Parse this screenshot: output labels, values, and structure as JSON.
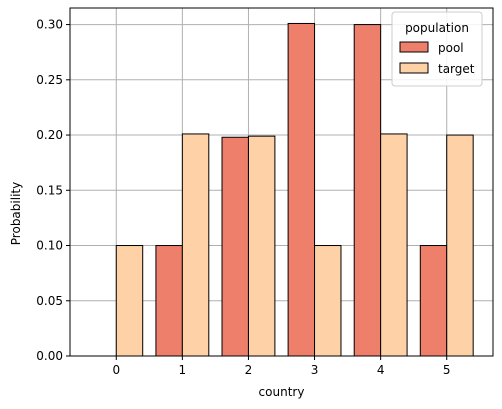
{
  "chart_data": {
    "type": "bar",
    "categories": [
      "0",
      "1",
      "2",
      "3",
      "4",
      "5"
    ],
    "series": [
      {
        "name": "pool",
        "color": "#ee7f6b",
        "values": [
          0.0,
          0.1,
          0.198,
          0.301,
          0.3,
          0.1
        ]
      },
      {
        "name": "target",
        "color": "#fed2a6",
        "values": [
          0.1,
          0.201,
          0.199,
          0.1,
          0.201,
          0.2
        ]
      }
    ],
    "xlabel": "country",
    "ylabel": "Probability",
    "ylim": [
      0,
      0.315
    ],
    "yticks": [
      "0.00",
      "0.05",
      "0.10",
      "0.15",
      "0.20",
      "0.25",
      "0.30"
    ],
    "ytick_values": [
      0,
      0.05,
      0.1,
      0.15,
      0.2,
      0.25,
      0.3
    ],
    "grid": true,
    "legend": {
      "title": "population",
      "position": "top-right"
    }
  }
}
